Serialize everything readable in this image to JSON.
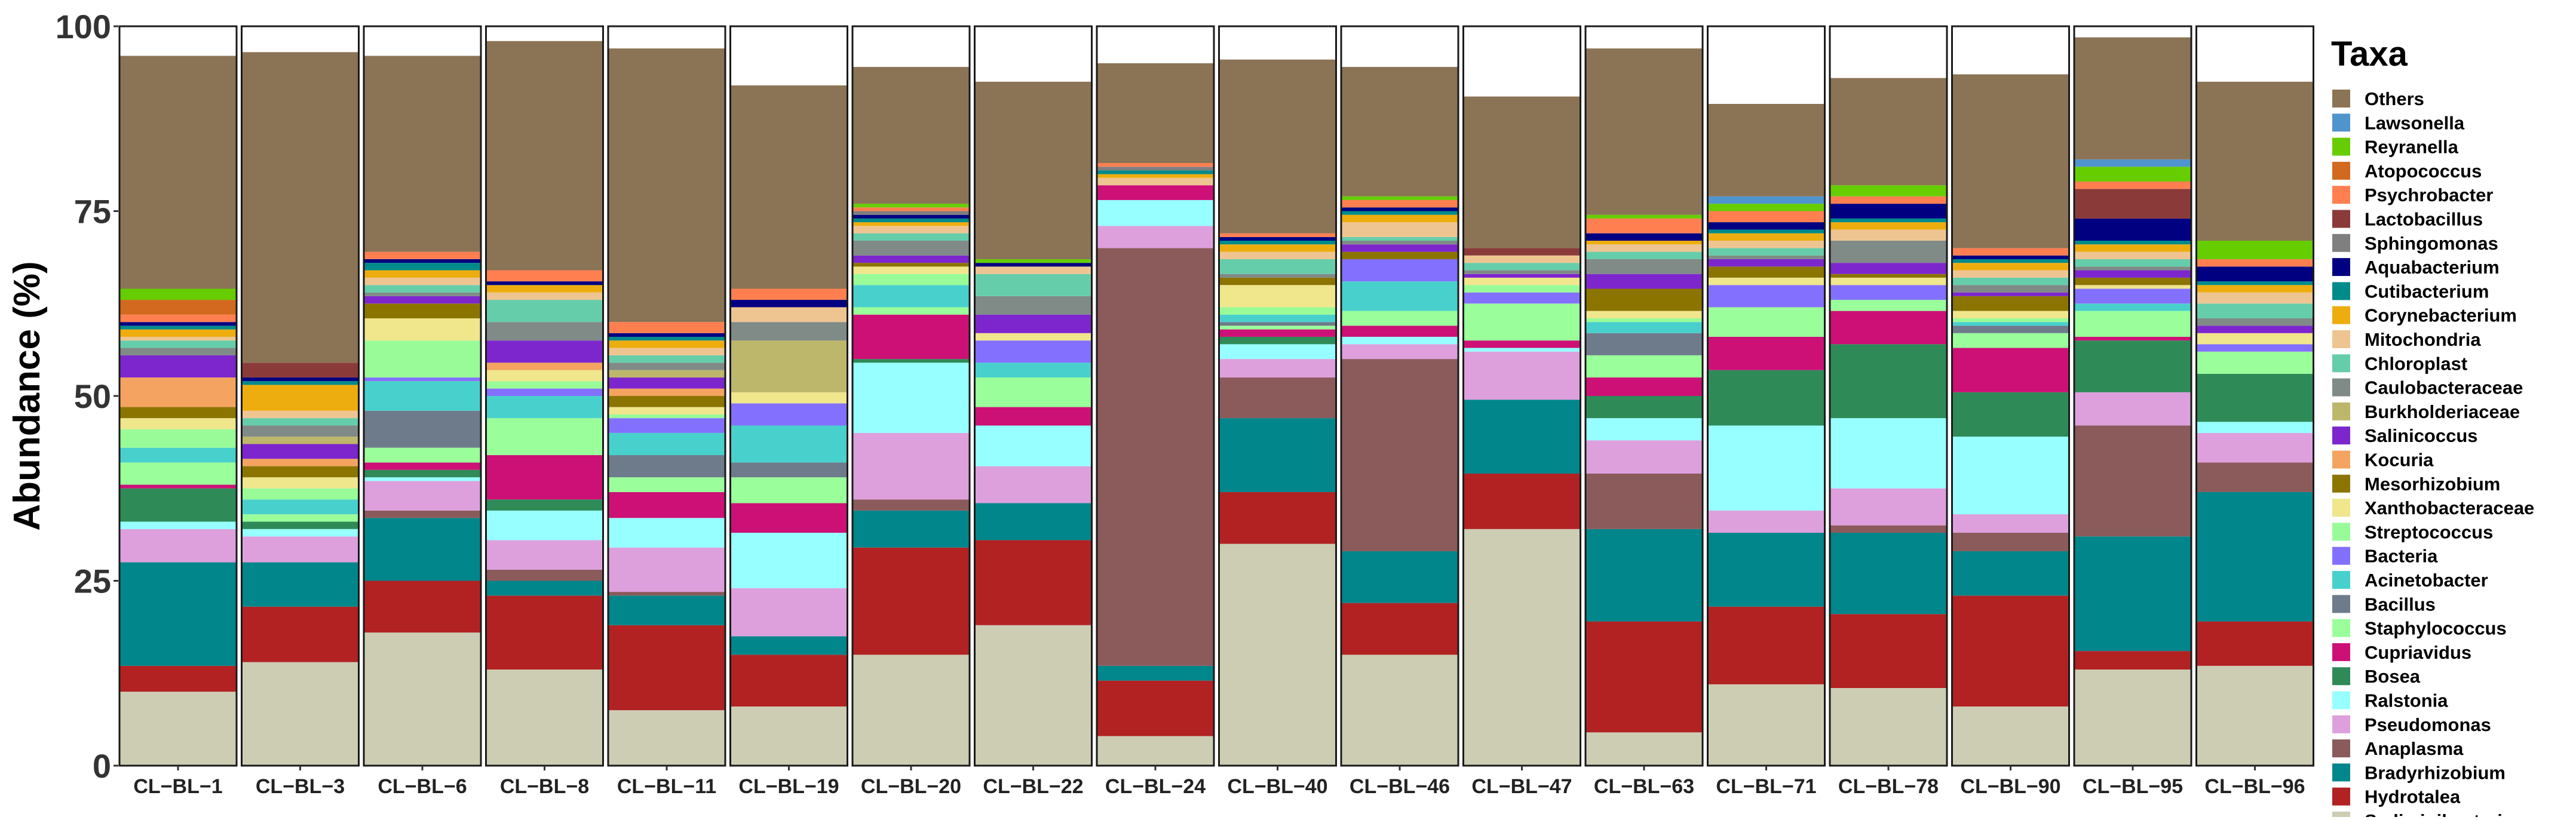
{
  "chart_data": {
    "type": "bar",
    "stacked": true,
    "title": "",
    "xlabel": "",
    "ylabel": "Abundance (%)",
    "ylim": [
      0,
      100
    ],
    "yticks": [
      0,
      25,
      50,
      75,
      100
    ],
    "legend_title": "Taxa",
    "legend_position": "right",
    "categories": [
      "CL−BL−1",
      "CL−BL−3",
      "CL−BL−6",
      "CL−BL−8",
      "CL−BL−11",
      "CL−BL−19",
      "CL−BL−20",
      "CL−BL−22",
      "CL−BL−24",
      "CL−BL−40",
      "CL−BL−46",
      "CL−BL−47",
      "CL−BL−63",
      "CL−BL−71",
      "CL−BL−78",
      "CL−BL−90",
      "CL−BL−95",
      "CL−BL−96"
    ],
    "series": [
      {
        "name": "Sediminibacterium",
        "color": "#CDCDB4",
        "values": [
          10,
          14,
          18,
          13,
          7.5,
          8,
          15,
          19,
          4,
          30,
          15,
          32,
          4.5,
          11,
          10.5,
          8,
          13,
          13.5
        ]
      },
      {
        "name": "Hydrotalea",
        "color": "#B22222",
        "values": [
          3.5,
          7.5,
          7,
          10,
          11.5,
          7,
          14.5,
          11.5,
          7.5,
          7,
          7,
          7.5,
          15,
          10.5,
          10,
          15,
          2.5,
          6
        ]
      },
      {
        "name": "Bradyrhizobium",
        "color": "#00868B",
        "values": [
          14,
          6,
          8.5,
          2,
          4,
          2.5,
          5,
          5,
          2,
          10,
          7,
          10,
          12.5,
          10,
          11,
          6,
          15.5,
          17.5
        ]
      },
      {
        "name": "Anaplasma",
        "color": "#8B5A5A",
        "values": [
          0,
          0,
          1,
          1.5,
          0.5,
          0,
          1.5,
          0,
          56.5,
          5.5,
          26,
          0,
          7.5,
          0,
          1,
          2.5,
          15,
          4
        ]
      },
      {
        "name": "Pseudomonas",
        "color": "#DDA0DD",
        "values": [
          4.5,
          3.5,
          4,
          4,
          6,
          6.5,
          9,
          5,
          3,
          2.5,
          2,
          6.5,
          4.5,
          3,
          5,
          2.5,
          4.5,
          4
        ]
      },
      {
        "name": "Ralstonia",
        "color": "#97FFFF",
        "values": [
          1,
          1,
          0.5,
          4,
          4,
          7.5,
          9.5,
          5.5,
          3.5,
          2,
          1,
          0.5,
          3,
          11.5,
          9.5,
          10.5,
          0,
          1.5
        ]
      },
      {
        "name": "Bosea",
        "color": "#2E8B57",
        "values": [
          4.5,
          1,
          1,
          1.5,
          0,
          0,
          0.5,
          0,
          0,
          1,
          0,
          0,
          3,
          7.5,
          10,
          6,
          7,
          6.5
        ]
      },
      {
        "name": "Cupriavidus",
        "color": "#CD1076",
        "values": [
          0.5,
          0,
          1,
          6,
          3.5,
          4,
          6,
          2.5,
          2,
          1,
          1.5,
          1,
          2.5,
          4.5,
          4.5,
          6,
          0.5,
          0
        ]
      },
      {
        "name": "Staphylococcus",
        "color": "#9AFF9A",
        "values": [
          3,
          1,
          2,
          5,
          2,
          3.5,
          1,
          4,
          0,
          0.5,
          2,
          5,
          3,
          4,
          1.5,
          2,
          3.5,
          3
        ]
      },
      {
        "name": "Bacillus",
        "color": "#6E7B8B",
        "values": [
          0,
          0,
          5,
          0,
          3,
          2,
          0,
          0,
          0,
          0.5,
          0,
          0,
          3,
          0,
          0,
          1,
          0,
          0
        ]
      },
      {
        "name": "Acinetobacter",
        "color": "#48D1CC",
        "values": [
          2,
          2,
          4,
          3,
          3,
          5,
          3,
          2,
          0,
          1,
          4,
          0,
          1.5,
          0,
          0,
          0.5,
          1,
          0
        ]
      },
      {
        "name": "Bacteria",
        "color": "#8470FF",
        "values": [
          0,
          0,
          0.5,
          1,
          2,
          3,
          0,
          3,
          0,
          0,
          3,
          1.5,
          0,
          3,
          2,
          0,
          2,
          1
        ]
      },
      {
        "name": "Streptococcus",
        "color": "#98FB98",
        "values": [
          2.5,
          1.5,
          5,
          1,
          0.5,
          0,
          1.5,
          0,
          0,
          1,
          0,
          1,
          0.5,
          0,
          0,
          0.5,
          0,
          0
        ]
      },
      {
        "name": "Xanthobacteraceae",
        "color": "#F0E68C",
        "values": [
          1.5,
          1.5,
          3,
          1.5,
          1,
          1.5,
          1,
          1,
          0,
          3,
          0,
          1,
          1,
          1,
          1,
          1,
          0.5,
          1.5
        ]
      },
      {
        "name": "Mesorhizobium",
        "color": "#8B7500",
        "values": [
          1.5,
          1.5,
          2,
          0,
          1.5,
          0,
          0.5,
          0,
          0,
          1,
          1,
          0,
          3,
          1.5,
          0.5,
          2,
          1,
          0
        ]
      },
      {
        "name": "Kocuria",
        "color": "#F4A460",
        "values": [
          4,
          1,
          0,
          1,
          1,
          0,
          0,
          0,
          0,
          0,
          0,
          0,
          0,
          0,
          0,
          0,
          0,
          0
        ]
      },
      {
        "name": "Salinicoccus",
        "color": "#7D26CD",
        "values": [
          3,
          2,
          1,
          3,
          1.5,
          0,
          1,
          2.5,
          0,
          0,
          1,
          0.5,
          2,
          1,
          1.5,
          0.5,
          1,
          1
        ]
      },
      {
        "name": "Burkholderiaceae",
        "color": "#BDB76B",
        "values": [
          0,
          1,
          0,
          0,
          1,
          7,
          0,
          0,
          0,
          0,
          0,
          0,
          0,
          0,
          0,
          0,
          0,
          0
        ]
      },
      {
        "name": "Caulobacteraceae",
        "color": "#808A87",
        "values": [
          1,
          1.5,
          0.5,
          2.5,
          1,
          2.5,
          2,
          2.5,
          0,
          0.5,
          0.5,
          0.5,
          2,
          0.5,
          3,
          1,
          0.5,
          1
        ]
      },
      {
        "name": "Chloroplast",
        "color": "#66CDAA",
        "values": [
          1,
          1,
          1,
          3,
          1,
          0,
          1,
          3,
          0,
          2,
          0.5,
          1,
          1,
          1,
          0,
          1,
          1,
          2
        ]
      },
      {
        "name": "Mitochondria",
        "color": "#EEC591",
        "values": [
          0.5,
          1,
          1,
          1,
          1,
          2,
          1,
          1,
          1,
          1,
          2,
          1,
          1,
          1,
          1.5,
          1,
          1,
          1.5
        ]
      },
      {
        "name": "Corynebacterium",
        "color": "#EEAD0E",
        "values": [
          1,
          3.5,
          1,
          1,
          1,
          0,
          0.5,
          0,
          0.5,
          1,
          1,
          0,
          0.5,
          1,
          1,
          1,
          1,
          1
        ]
      },
      {
        "name": "Cutibacterium",
        "color": "#008B8B",
        "values": [
          0.5,
          0.5,
          1,
          0,
          0.5,
          0,
          0.5,
          0,
          0.5,
          0.5,
          0.5,
          0,
          0,
          0.5,
          0.5,
          0.5,
          0.5,
          0.5
        ]
      },
      {
        "name": "Aquabacterium",
        "color": "#000080",
        "values": [
          0.5,
          0.5,
          0.5,
          0.5,
          0.5,
          1,
          0.5,
          0.5,
          0,
          0.5,
          0.5,
          0,
          1,
          1,
          2,
          0.5,
          3,
          2
        ]
      },
      {
        "name": "Sphingomonas",
        "color": "#7F7F7F",
        "values": [
          0,
          0,
          0,
          0,
          0,
          0,
          0.5,
          0,
          0.5,
          0,
          0,
          0,
          0,
          0,
          0,
          0,
          0,
          0
        ]
      },
      {
        "name": "Lactobacillus",
        "color": "#8B3A3A",
        "values": [
          0,
          2,
          0,
          0,
          0,
          0,
          0,
          0,
          0,
          0,
          0,
          1,
          0,
          0,
          0,
          0,
          4,
          0
        ]
      },
      {
        "name": "Psychrobacter",
        "color": "#FF7F50",
        "values": [
          1,
          0,
          1,
          1.5,
          1.5,
          1.5,
          0.5,
          0,
          0.5,
          0.5,
          1,
          0,
          2,
          1.5,
          1,
          1,
          1,
          1
        ]
      },
      {
        "name": "Atopococcus",
        "color": "#D2691E",
        "values": [
          2,
          0,
          0,
          0,
          0,
          0,
          0,
          0,
          0,
          0,
          0,
          0,
          0,
          0,
          0,
          0,
          0,
          0
        ]
      },
      {
        "name": "Reyranella",
        "color": "#66CD00",
        "values": [
          1.5,
          0,
          0,
          0,
          0,
          0,
          0.5,
          0.5,
          0,
          0,
          0.5,
          0,
          0.5,
          1,
          1.5,
          0,
          2,
          2.5
        ]
      },
      {
        "name": "Lawsonella",
        "color": "#4F94CD",
        "values": [
          0,
          0,
          0,
          0,
          0,
          0,
          0,
          0,
          0,
          0,
          0,
          0,
          0,
          1,
          0,
          0,
          1,
          0
        ]
      },
      {
        "name": "Others",
        "color": "#8B7355",
        "values": [
          31.5,
          42,
          26.5,
          31,
          37,
          27.5,
          18.5,
          24,
          13.5,
          23.5,
          17.5,
          20.5,
          22.5,
          12.5,
          14.5,
          23.5,
          16.5,
          21.5
        ]
      }
    ]
  }
}
